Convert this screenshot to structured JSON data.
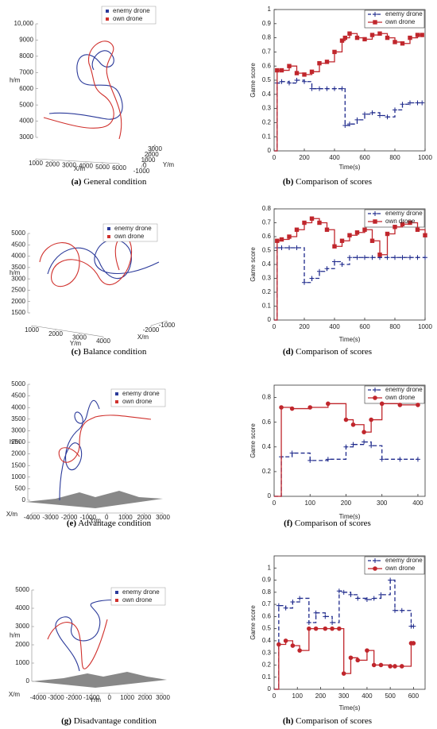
{
  "chart_data": [
    {
      "type": "trajectory3d",
      "label": "(a)",
      "caption": "General condition",
      "zlabel": "h/m",
      "xlabel": "X/m",
      "ylabel": "Y/m",
      "zlim": [
        3000,
        10000
      ],
      "zticks": [
        3000,
        4000,
        5000,
        6000,
        7000,
        8000,
        9000,
        {
          "value": 10000,
          "label": "10,000"
        }
      ],
      "xlim": [
        1000,
        6000
      ],
      "xticks": [
        1000,
        2000,
        3000,
        4000,
        5000,
        6000
      ],
      "ylim": [
        -1000,
        3000
      ],
      "yticks": [
        -1000,
        0,
        1000,
        2000,
        3000
      ],
      "series": [
        {
          "name": "enemy drone",
          "color": "#2b3a9a"
        },
        {
          "name": "own drone",
          "color": "#d0312d"
        }
      ]
    },
    {
      "type": "line",
      "label": "(b)",
      "caption": "Comparison of scores",
      "xlabel": "Time(s)",
      "ylabel": "Game score",
      "drawstyle": "steps-post",
      "legend": "upper right",
      "x": [
        0,
        20,
        50,
        100,
        150,
        200,
        250,
        300,
        350,
        400,
        450,
        470,
        500,
        550,
        600,
        650,
        700,
        750,
        800,
        850,
        900,
        950,
        980
      ],
      "xlim": [
        0,
        1000
      ],
      "xticks": [
        0,
        200,
        400,
        600,
        800,
        1000
      ],
      "ylim": [
        0,
        1
      ],
      "yticks": [
        0,
        0.1,
        0.2,
        0.3,
        0.4,
        0.5,
        0.6,
        0.7,
        0.8,
        0.9,
        1
      ],
      "series": [
        {
          "name": "enemy drone",
          "color": "#1f2a8c",
          "marker": "+",
          "values": [
            0,
            0.48,
            0.49,
            0.48,
            0.5,
            0.49,
            0.44,
            0.44,
            0.44,
            0.44,
            0.44,
            0.18,
            0.19,
            0.22,
            0.26,
            0.27,
            0.25,
            0.24,
            0.29,
            0.33,
            0.34,
            0.34,
            0.34
          ]
        },
        {
          "name": "own drone",
          "color": "#c0262c",
          "marker": "s",
          "values": [
            0,
            0.57,
            0.57,
            0.6,
            0.55,
            0.54,
            0.56,
            0.62,
            0.63,
            0.7,
            0.78,
            0.8,
            0.83,
            0.8,
            0.79,
            0.82,
            0.83,
            0.8,
            0.77,
            0.76,
            0.8,
            0.82,
            0.82
          ]
        }
      ]
    },
    {
      "type": "trajectory3d",
      "label": "(c)",
      "caption": "Balance condition",
      "zlabel": "h/m",
      "xlabel": "Y/m",
      "ylabel": "X/m",
      "zlim": [
        1500,
        5000
      ],
      "zticks": [
        1500,
        2000,
        2500,
        3000,
        3500,
        4000,
        4500,
        5000
      ],
      "xlim": [
        1000,
        4000
      ],
      "xticks": [
        1000,
        2000,
        3000,
        4000
      ],
      "ylim": [
        -2000,
        -1000
      ],
      "yticks": [
        -2000,
        -1000
      ],
      "series": [
        {
          "name": "enemy drone",
          "color": "#2b3a9a"
        },
        {
          "name": "own drone",
          "color": "#d0312d"
        }
      ]
    },
    {
      "type": "line",
      "label": "(d)",
      "caption": "Comparison of scores",
      "xlabel": "Time(s)",
      "ylabel": "Game score",
      "drawstyle": "steps-post",
      "legend": "upper right",
      "x": [
        0,
        20,
        50,
        100,
        150,
        200,
        250,
        300,
        350,
        400,
        450,
        500,
        550,
        600,
        650,
        700,
        750,
        800,
        850,
        900,
        950,
        1000
      ],
      "xlim": [
        0,
        1000
      ],
      "xticks": [
        0,
        200,
        400,
        600,
        800,
        1000
      ],
      "ylim": [
        0,
        0.8
      ],
      "yticks": [
        0,
        0.1,
        0.2,
        0.3,
        0.4,
        0.5,
        0.6,
        0.7,
        0.8
      ],
      "series": [
        {
          "name": "enemy drone",
          "color": "#1f2a8c",
          "marker": "+",
          "values": [
            0,
            0.52,
            0.52,
            0.52,
            0.52,
            0.27,
            0.3,
            0.35,
            0.37,
            0.42,
            0.4,
            0.45,
            0.45,
            0.45,
            0.45,
            0.45,
            0.45,
            0.45,
            0.45,
            0.45,
            0.45,
            0.45
          ]
        },
        {
          "name": "own drone",
          "color": "#c0262c",
          "marker": "s",
          "values": [
            0,
            0.57,
            0.58,
            0.6,
            0.65,
            0.7,
            0.73,
            0.7,
            0.65,
            0.53,
            0.57,
            0.61,
            0.63,
            0.65,
            0.57,
            0.47,
            0.62,
            0.67,
            0.69,
            0.7,
            0.65,
            0.61
          ]
        }
      ]
    },
    {
      "type": "trajectory3d",
      "label": "(e)",
      "caption": "Advantage condition",
      "zlabel": "h/m",
      "xlabel": "X/m",
      "ylabel": "Y/m",
      "zlim": [
        0,
        5000
      ],
      "zticks": [
        0,
        500,
        1000,
        1500,
        2000,
        2500,
        3000,
        3500,
        4000,
        4500,
        5000
      ],
      "xlim": [
        -4000,
        3000
      ],
      "xticks": [
        -4000,
        -3000,
        -2000,
        -1000,
        0,
        1000,
        2000,
        3000
      ],
      "series": [
        {
          "name": "enemy drone",
          "color": "#2b3a9a"
        },
        {
          "name": "own drone",
          "color": "#d0312d"
        }
      ]
    },
    {
      "type": "line",
      "label": "(f)",
      "caption": "Comparison of scores",
      "xlabel": "Time(s)",
      "ylabel": "Game score",
      "drawstyle": "steps-post",
      "legend": "upper right",
      "x": [
        0,
        20,
        50,
        100,
        150,
        200,
        220,
        250,
        270,
        300,
        350,
        400
      ],
      "xlim": [
        0,
        420
      ],
      "xticks": [
        0,
        100,
        200,
        300,
        400
      ],
      "ylim": [
        0,
        0.9
      ],
      "yticks": [
        0,
        0.2,
        0.4,
        0.6,
        0.8
      ],
      "series": [
        {
          "name": "enemy drone",
          "color": "#1f2a8c",
          "marker": "+",
          "values": [
            0,
            0.32,
            0.35,
            0.29,
            0.3,
            0.4,
            0.42,
            0.44,
            0.41,
            0.3,
            0.3,
            0.3
          ]
        },
        {
          "name": "own drone",
          "color": "#c0262c",
          "marker": "o",
          "values": [
            0,
            0.72,
            0.71,
            0.72,
            0.75,
            0.62,
            0.58,
            0.52,
            0.62,
            0.75,
            0.74,
            0.74
          ]
        }
      ]
    },
    {
      "type": "trajectory3d",
      "label": "(g)",
      "caption": "Disadvantage condition",
      "zlabel": "h/m",
      "xlabel": "X/m",
      "ylabel": "Y/m",
      "zlim": [
        0,
        5000
      ],
      "zticks": [
        0,
        1000,
        2000,
        3000,
        4000,
        5000
      ],
      "xlim": [
        -4000,
        3000
      ],
      "xticks": [
        -4000,
        -3000,
        -2000,
        -1000,
        0,
        1000,
        2000,
        3000
      ],
      "series": [
        {
          "name": "enemy drone",
          "color": "#2b3a9a"
        },
        {
          "name": "own drone",
          "color": "#d0312d"
        }
      ]
    },
    {
      "type": "line",
      "label": "(h)",
      "caption": "Comparison of scores",
      "xlabel": "Time(s)",
      "ylabel": "Game score",
      "drawstyle": "steps-post",
      "legend": "upper right",
      "x": [
        0,
        20,
        50,
        80,
        110,
        150,
        180,
        220,
        250,
        280,
        300,
        330,
        360,
        400,
        430,
        460,
        500,
        520,
        550,
        590,
        600
      ],
      "xlim": [
        0,
        650
      ],
      "xticks": [
        0,
        100,
        200,
        300,
        400,
        500,
        600
      ],
      "ylim": [
        0,
        1.1
      ],
      "yticks": [
        0,
        0.1,
        0.2,
        0.3,
        0.4,
        0.5,
        0.6,
        0.7,
        0.8,
        0.9,
        1
      ],
      "series": [
        {
          "name": "enemy drone",
          "color": "#1f2a8c",
          "marker": "+",
          "values": [
            0,
            0.69,
            0.67,
            0.72,
            0.75,
            0.55,
            0.63,
            0.6,
            0.55,
            0.81,
            0.8,
            0.78,
            0.75,
            0.74,
            0.75,
            0.78,
            0.9,
            0.65,
            0.65,
            0.52,
            0.52
          ]
        },
        {
          "name": "own drone",
          "color": "#c0262c",
          "marker": "o",
          "values": [
            0,
            0.37,
            0.4,
            0.36,
            0.32,
            0.5,
            0.5,
            0.5,
            0.5,
            0.5,
            0.13,
            0.26,
            0.24,
            0.32,
            0.2,
            0.2,
            0.19,
            0.19,
            0.19,
            0.38,
            0.38
          ]
        }
      ]
    }
  ]
}
